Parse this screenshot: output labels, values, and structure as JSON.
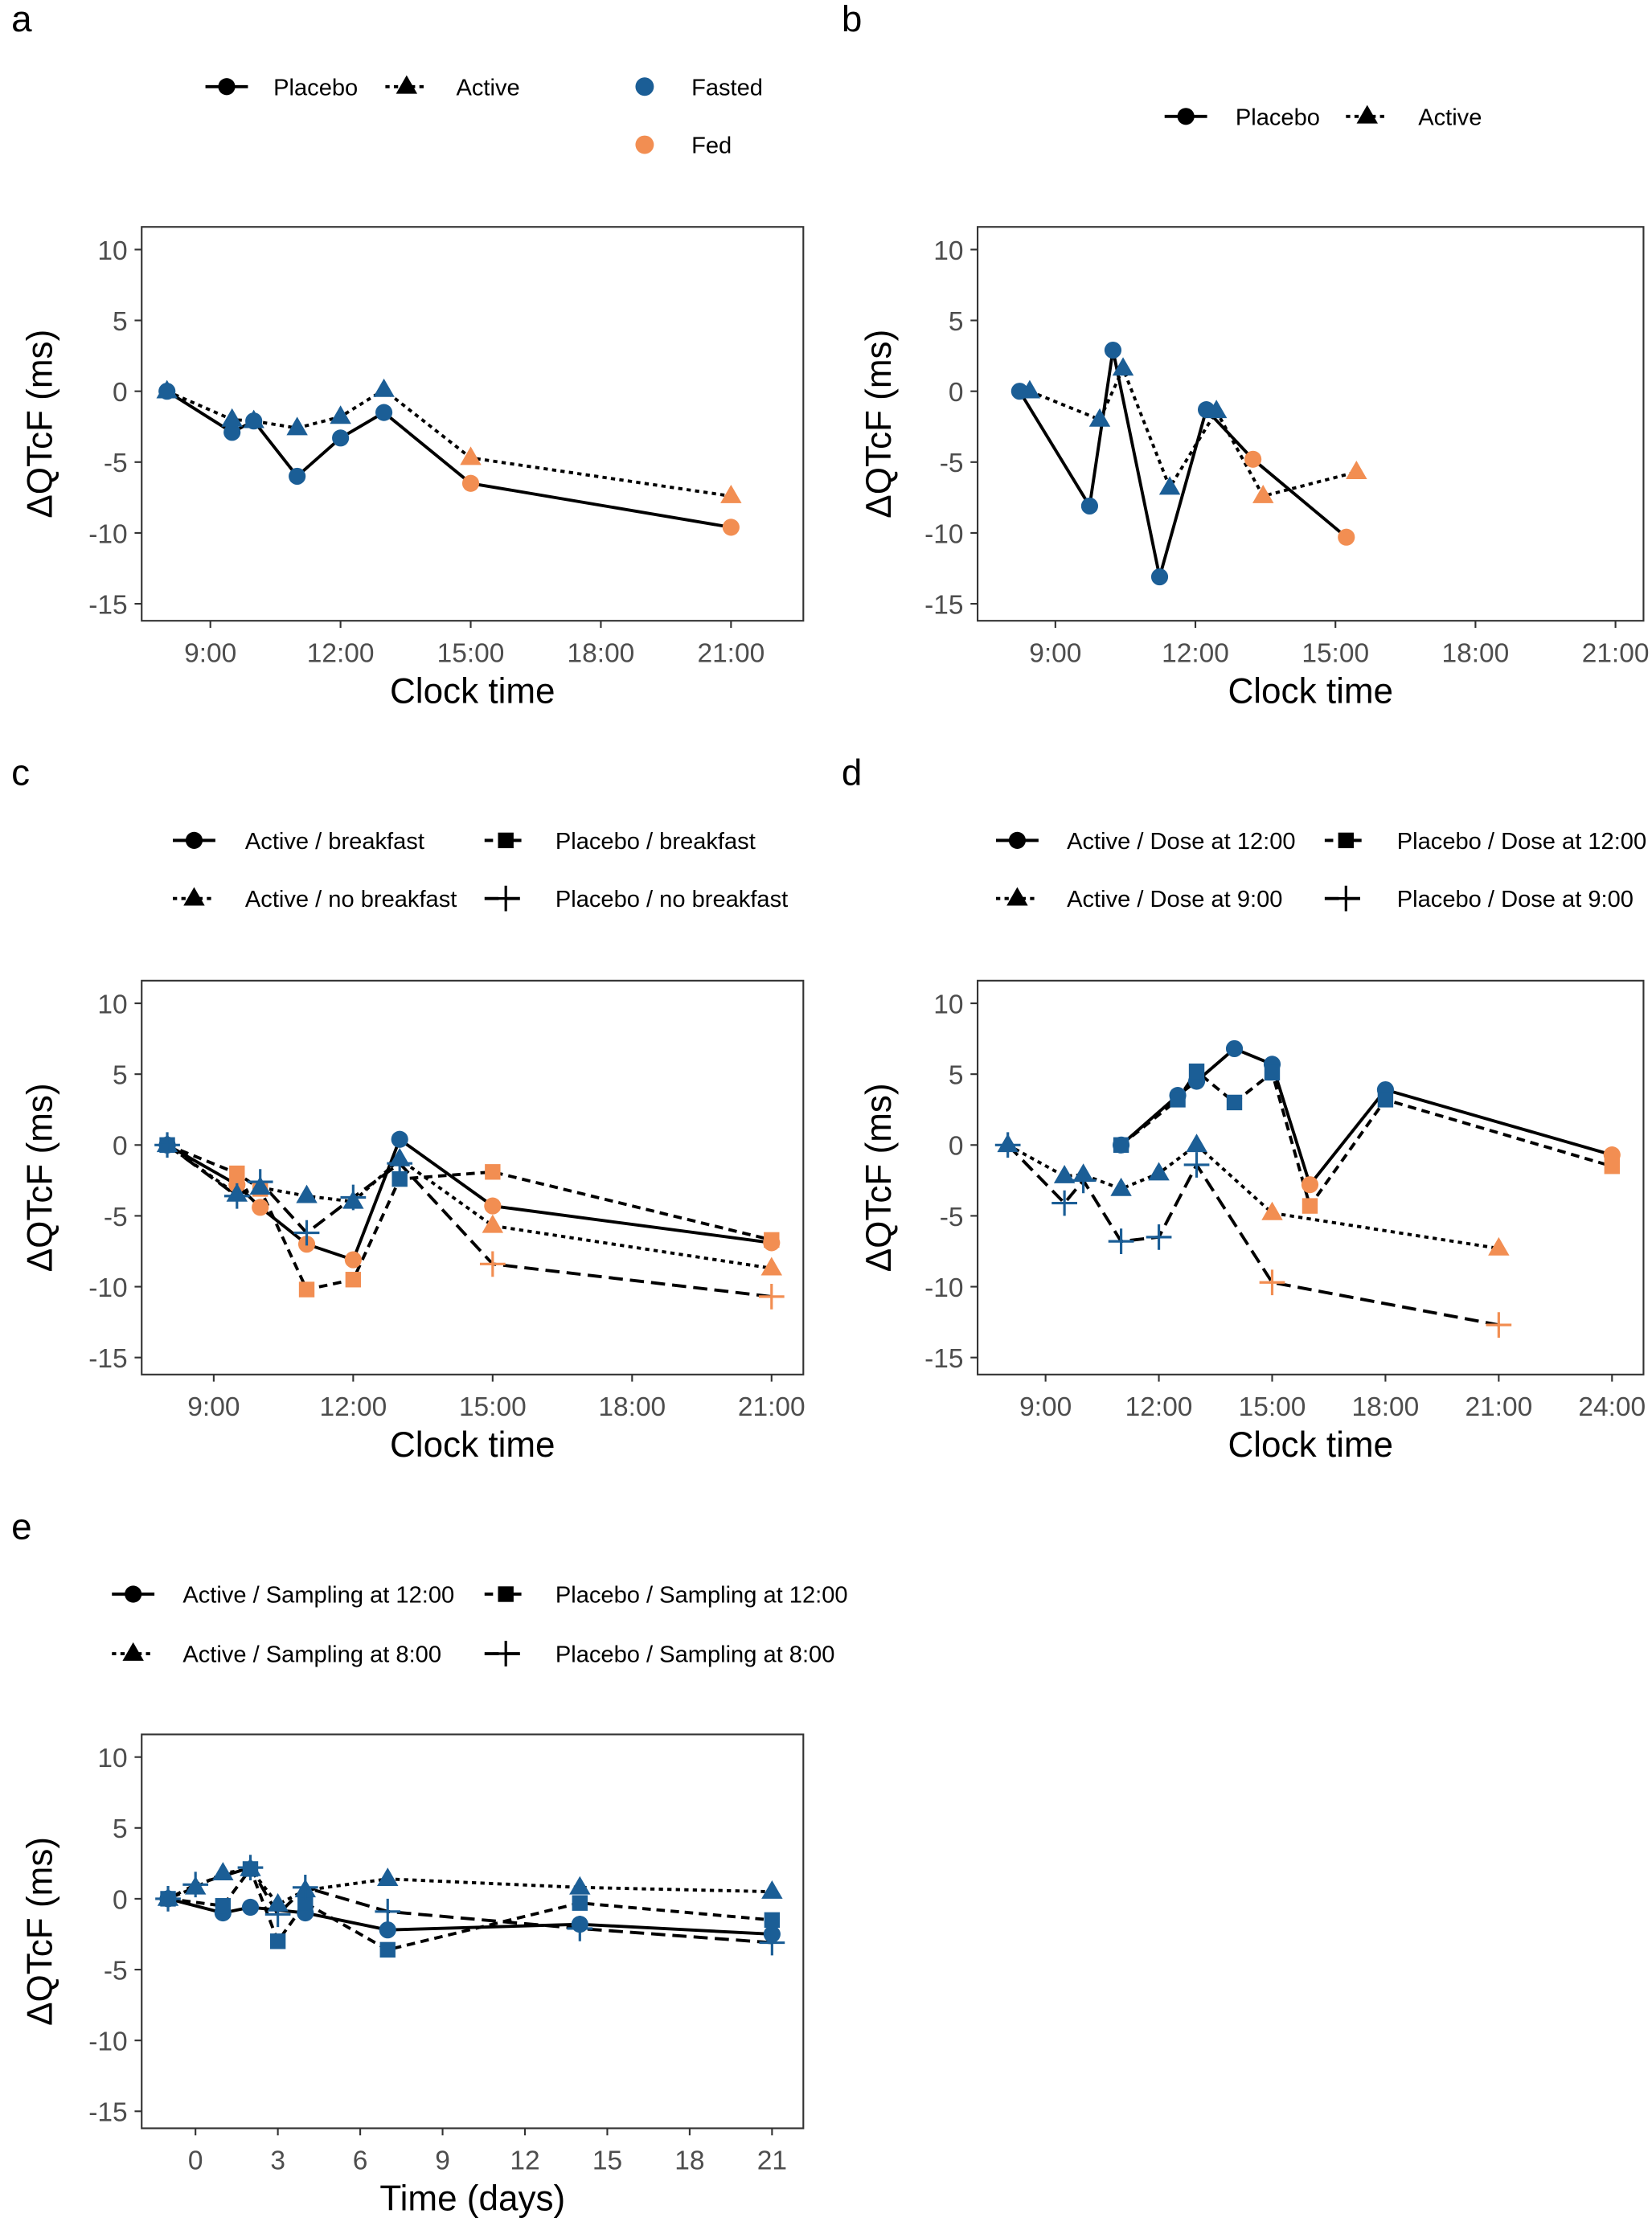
{
  "colors": {
    "blue": "#1b5e96",
    "orange": "#f28e52",
    "line": "#000000",
    "frame": "#333333"
  },
  "chart_data": [
    {
      "panel": "a",
      "type": "line",
      "xaxis": "clock",
      "xlabel": "Clock time",
      "ylabel": "ΔQTcF (ms)",
      "xlim": [
        "7:25",
        "22:40"
      ],
      "ylim": [
        -16.2,
        11.6
      ],
      "xticks": [
        "9:00",
        "12:00",
        "15:00",
        "18:00",
        "21:00"
      ],
      "yticks": [
        10,
        5,
        0,
        -5,
        -10,
        -15
      ],
      "color_legend": [
        {
          "label": "Fasted",
          "color": "blue"
        },
        {
          "label": "Fed",
          "color": "orange"
        }
      ],
      "series": [
        {
          "name": "Placebo",
          "shape": "circle",
          "line": "solid",
          "points": [
            {
              "x": "8:00",
              "y": 0,
              "color": "blue"
            },
            {
              "x": "9:30",
              "y": -2.9,
              "color": "blue"
            },
            {
              "x": "10:00",
              "y": -2.1,
              "color": "blue"
            },
            {
              "x": "11:00",
              "y": -6.0,
              "color": "blue"
            },
            {
              "x": "12:00",
              "y": -3.3,
              "color": "blue"
            },
            {
              "x": "13:00",
              "y": -1.5,
              "color": "blue"
            },
            {
              "x": "15:00",
              "y": -6.5,
              "color": "orange"
            },
            {
              "x": "21:00",
              "y": -9.6,
              "color": "orange"
            }
          ]
        },
        {
          "name": "Active",
          "shape": "triangle",
          "line": "dotted",
          "points": [
            {
              "x": "8:00",
              "y": 0,
              "color": "blue"
            },
            {
              "x": "9:30",
              "y": -2.0,
              "color": "blue"
            },
            {
              "x": "10:00",
              "y": -2.1,
              "color": "blue"
            },
            {
              "x": "11:00",
              "y": -2.6,
              "color": "blue"
            },
            {
              "x": "12:00",
              "y": -1.8,
              "color": "blue"
            },
            {
              "x": "13:00",
              "y": 0.1,
              "color": "blue"
            },
            {
              "x": "15:00",
              "y": -4.7,
              "color": "orange"
            },
            {
              "x": "21:00",
              "y": -7.4,
              "color": "orange"
            }
          ]
        }
      ]
    },
    {
      "panel": "b",
      "type": "line",
      "xaxis": "clock",
      "xlabel": "Clock time",
      "ylabel": "ΔQTcF (ms)",
      "xlim": [
        "7:20",
        "21:36"
      ],
      "ylim": [
        -16.2,
        11.6
      ],
      "xticks": [
        "9:00",
        "12:00",
        "15:00",
        "18:00",
        "21:00"
      ],
      "yticks": [
        10,
        5,
        0,
        -5,
        -10,
        -15
      ],
      "series": [
        {
          "name": "Placebo",
          "shape": "circle",
          "line": "solid",
          "points": [
            {
              "x": "8:14",
              "y": 0,
              "color": "blue"
            },
            {
              "x": "9:44",
              "y": -8.1,
              "color": "blue"
            },
            {
              "x": "10:14",
              "y": 2.9,
              "color": "blue"
            },
            {
              "x": "11:14",
              "y": -13.1,
              "color": "blue"
            },
            {
              "x": "12:14",
              "y": -1.3,
              "color": "blue"
            },
            {
              "x": "13:14",
              "y": -4.8,
              "color": "orange"
            },
            {
              "x": "15:14",
              "y": -10.3,
              "color": "orange"
            }
          ]
        },
        {
          "name": "Active",
          "shape": "triangle",
          "line": "dotted",
          "points": [
            {
              "x": "8:27",
              "y": 0,
              "color": "blue"
            },
            {
              "x": "9:57",
              "y": -2.0,
              "color": "blue"
            },
            {
              "x": "10:27",
              "y": 1.6,
              "color": "blue"
            },
            {
              "x": "11:27",
              "y": -6.8,
              "color": "blue"
            },
            {
              "x": "12:27",
              "y": -1.4,
              "color": "blue"
            },
            {
              "x": "13:27",
              "y": -7.4,
              "color": "orange"
            },
            {
              "x": "15:27",
              "y": -5.7,
              "color": "orange"
            }
          ]
        }
      ]
    },
    {
      "panel": "c",
      "type": "line",
      "xaxis": "clock",
      "xlabel": "Clock time",
      "ylabel": "ΔQTcF (ms)",
      "xlim": [
        "7:27",
        "21:41"
      ],
      "ylim": [
        -16.2,
        11.6
      ],
      "xticks": [
        "9:00",
        "12:00",
        "15:00",
        "18:00",
        "21:00"
      ],
      "yticks": [
        10,
        5,
        0,
        -5,
        -10,
        -15
      ],
      "series": [
        {
          "name": "Active / breakfast",
          "shape": "circle",
          "line": "solid",
          "points": [
            {
              "x": "8:00",
              "y": 0,
              "color": "blue"
            },
            {
              "x": "9:30",
              "y": -2.8,
              "color": "orange"
            },
            {
              "x": "10:00",
              "y": -4.4,
              "color": "orange"
            },
            {
              "x": "11:00",
              "y": -7.0,
              "color": "orange"
            },
            {
              "x": "12:00",
              "y": -8.1,
              "color": "orange"
            },
            {
              "x": "13:00",
              "y": 0.4,
              "color": "blue"
            },
            {
              "x": "15:00",
              "y": -4.3,
              "color": "orange"
            },
            {
              "x": "21:00",
              "y": -6.9,
              "color": "orange"
            }
          ]
        },
        {
          "name": "Placebo / breakfast",
          "shape": "square",
          "line": "dashed",
          "points": [
            {
              "x": "8:00",
              "y": 0,
              "color": "blue"
            },
            {
              "x": "9:30",
              "y": -2.0,
              "color": "orange"
            },
            {
              "x": "10:00",
              "y": -3.1,
              "color": "orange"
            },
            {
              "x": "11:00",
              "y": -10.2,
              "color": "orange"
            },
            {
              "x": "12:00",
              "y": -9.5,
              "color": "orange"
            },
            {
              "x": "13:00",
              "y": -2.4,
              "color": "blue"
            },
            {
              "x": "15:00",
              "y": -1.9,
              "color": "orange"
            },
            {
              "x": "21:00",
              "y": -6.7,
              "color": "orange"
            }
          ]
        },
        {
          "name": "Active / no breakfast",
          "shape": "triangle",
          "line": "dotted",
          "points": [
            {
              "x": "8:00",
              "y": 0,
              "color": "blue"
            },
            {
              "x": "9:30",
              "y": -3.5,
              "color": "blue"
            },
            {
              "x": "10:00",
              "y": -3.0,
              "color": "blue"
            },
            {
              "x": "11:00",
              "y": -3.6,
              "color": "blue"
            },
            {
              "x": "12:00",
              "y": -4.0,
              "color": "blue"
            },
            {
              "x": "13:00",
              "y": -1.0,
              "color": "blue"
            },
            {
              "x": "15:00",
              "y": -5.7,
              "color": "orange"
            },
            {
              "x": "21:00",
              "y": -8.7,
              "color": "orange"
            }
          ]
        },
        {
          "name": "Placebo / no breakfast",
          "shape": "plus",
          "line": "longdash",
          "points": [
            {
              "x": "8:00",
              "y": 0,
              "color": "blue"
            },
            {
              "x": "9:30",
              "y": -3.6,
              "color": "blue"
            },
            {
              "x": "10:00",
              "y": -2.6,
              "color": "blue"
            },
            {
              "x": "11:00",
              "y": -6.2,
              "color": "blue"
            },
            {
              "x": "12:00",
              "y": -3.7,
              "color": "blue"
            },
            {
              "x": "13:00",
              "y": -1.3,
              "color": "blue"
            },
            {
              "x": "15:00",
              "y": -8.4,
              "color": "orange"
            },
            {
              "x": "21:00",
              "y": -10.7,
              "color": "orange"
            }
          ]
        }
      ]
    },
    {
      "panel": "d",
      "type": "line",
      "xaxis": "clock",
      "xlabel": "Clock time",
      "ylabel": "ΔQTcF (ms)",
      "xlim": [
        "7:12",
        "24:50"
      ],
      "ylim": [
        -16.2,
        11.6
      ],
      "xticks": [
        "9:00",
        "12:00",
        "15:00",
        "18:00",
        "21:00",
        "24:00"
      ],
      "yticks": [
        10,
        5,
        0,
        -5,
        -10,
        -15
      ],
      "series": [
        {
          "name": "Active / Dose at 12:00",
          "shape": "circle",
          "line": "solid",
          "points": [
            {
              "x": "11:00",
              "y": 0,
              "color": "blue"
            },
            {
              "x": "12:30",
              "y": 3.5,
              "color": "blue"
            },
            {
              "x": "13:00",
              "y": 4.5,
              "color": "blue"
            },
            {
              "x": "14:00",
              "y": 6.8,
              "color": "blue"
            },
            {
              "x": "15:00",
              "y": 5.7,
              "color": "blue"
            },
            {
              "x": "16:00",
              "y": -2.8,
              "color": "orange"
            },
            {
              "x": "18:00",
              "y": 3.9,
              "color": "blue"
            },
            {
              "x": "24:00",
              "y": -0.7,
              "color": "orange"
            }
          ]
        },
        {
          "name": "Placebo / Dose at 12:00",
          "shape": "square",
          "line": "dashed",
          "points": [
            {
              "x": "11:00",
              "y": 0,
              "color": "blue"
            },
            {
              "x": "12:30",
              "y": 3.2,
              "color": "blue"
            },
            {
              "x": "13:00",
              "y": 5.2,
              "color": "blue"
            },
            {
              "x": "14:00",
              "y": 3.0,
              "color": "blue"
            },
            {
              "x": "15:00",
              "y": 5.1,
              "color": "blue"
            },
            {
              "x": "16:00",
              "y": -4.3,
              "color": "orange"
            },
            {
              "x": "18:00",
              "y": 3.2,
              "color": "blue"
            },
            {
              "x": "24:00",
              "y": -1.5,
              "color": "orange"
            }
          ]
        },
        {
          "name": "Active / Dose at 9:00",
          "shape": "triangle",
          "line": "dotted",
          "points": [
            {
              "x": "8:00",
              "y": 0,
              "color": "blue"
            },
            {
              "x": "9:30",
              "y": -2.2,
              "color": "blue"
            },
            {
              "x": "10:00",
              "y": -2.1,
              "color": "blue"
            },
            {
              "x": "11:00",
              "y": -3.1,
              "color": "blue"
            },
            {
              "x": "12:00",
              "y": -2.0,
              "color": "blue"
            },
            {
              "x": "13:00",
              "y": 0,
              "color": "blue"
            },
            {
              "x": "15:00",
              "y": -4.8,
              "color": "orange"
            },
            {
              "x": "21:00",
              "y": -7.3,
              "color": "orange"
            }
          ]
        },
        {
          "name": "Placebo / Dose at 9:00",
          "shape": "plus",
          "line": "longdash",
          "points": [
            {
              "x": "8:00",
              "y": 0,
              "color": "blue"
            },
            {
              "x": "9:30",
              "y": -4.1,
              "color": "blue"
            },
            {
              "x": "10:00",
              "y": -2.5,
              "color": "blue"
            },
            {
              "x": "11:00",
              "y": -6.8,
              "color": "blue"
            },
            {
              "x": "12:00",
              "y": -6.5,
              "color": "blue"
            },
            {
              "x": "13:00",
              "y": -1.4,
              "color": "blue"
            },
            {
              "x": "15:00",
              "y": -9.7,
              "color": "orange"
            },
            {
              "x": "21:00",
              "y": -12.7,
              "color": "orange"
            }
          ]
        }
      ]
    },
    {
      "panel": "e",
      "type": "line",
      "xaxis": "numeric",
      "xlabel": "Time (days)",
      "ylabel": "ΔQTcF (ms)",
      "xlim": [
        -1.96,
        22.14
      ],
      "ylim": [
        -16.2,
        11.6
      ],
      "xticks": [
        0,
        3,
        6,
        9,
        12,
        15,
        18,
        21
      ],
      "yticks": [
        10,
        5,
        0,
        -5,
        -10,
        -15
      ],
      "series": [
        {
          "name": "Active / Sampling at 12:00",
          "shape": "circle",
          "line": "solid",
          "points": [
            {
              "x": -1,
              "y": 0,
              "color": "blue"
            },
            {
              "x": 1,
              "y": -1.0,
              "color": "blue"
            },
            {
              "x": 2,
              "y": -0.6,
              "color": "blue"
            },
            {
              "x": 4,
              "y": -1.0,
              "color": "blue"
            },
            {
              "x": 7,
              "y": -2.2,
              "color": "blue"
            },
            {
              "x": 14,
              "y": -1.8,
              "color": "blue"
            },
            {
              "x": 21,
              "y": -2.5,
              "color": "blue"
            }
          ]
        },
        {
          "name": "Placebo / Sampling at 12:00",
          "shape": "square",
          "line": "dashed",
          "points": [
            {
              "x": -1,
              "y": 0,
              "color": "blue"
            },
            {
              "x": 1,
              "y": -0.5,
              "color": "blue"
            },
            {
              "x": 2,
              "y": 2.1,
              "color": "blue"
            },
            {
              "x": 3,
              "y": -3.0,
              "color": "blue"
            },
            {
              "x": 4,
              "y": -0.3,
              "color": "blue"
            },
            {
              "x": 7,
              "y": -3.6,
              "color": "blue"
            },
            {
              "x": 14,
              "y": -0.3,
              "color": "blue"
            },
            {
              "x": 21,
              "y": -1.5,
              "color": "blue"
            }
          ]
        },
        {
          "name": "Active / Sampling at 8:00",
          "shape": "triangle",
          "line": "dotted",
          "points": [
            {
              "x": -1,
              "y": 0,
              "color": "blue"
            },
            {
              "x": 0,
              "y": 0.8,
              "color": "blue"
            },
            {
              "x": 1,
              "y": 1.8,
              "color": "blue"
            },
            {
              "x": 2,
              "y": 2.1,
              "color": "blue"
            },
            {
              "x": 3,
              "y": -0.4,
              "color": "blue"
            },
            {
              "x": 4,
              "y": 0.6,
              "color": "blue"
            },
            {
              "x": 7,
              "y": 1.4,
              "color": "blue"
            },
            {
              "x": 14,
              "y": 0.8,
              "color": "blue"
            },
            {
              "x": 21,
              "y": 0.5,
              "color": "blue"
            }
          ]
        },
        {
          "name": "Placebo / Sampling at 8:00",
          "shape": "plus",
          "line": "longdash",
          "points": [
            {
              "x": -1,
              "y": 0,
              "color": "blue"
            },
            {
              "x": 0,
              "y": 1.0,
              "color": "blue"
            },
            {
              "x": 2,
              "y": 2.2,
              "color": "blue"
            },
            {
              "x": 3,
              "y": -1.1,
              "color": "blue"
            },
            {
              "x": 4,
              "y": 0.8,
              "color": "blue"
            },
            {
              "x": 7,
              "y": -0.9,
              "color": "blue"
            },
            {
              "x": 14,
              "y": -2.1,
              "color": "blue"
            },
            {
              "x": 21,
              "y": -3.1,
              "color": "blue"
            }
          ]
        }
      ]
    }
  ]
}
